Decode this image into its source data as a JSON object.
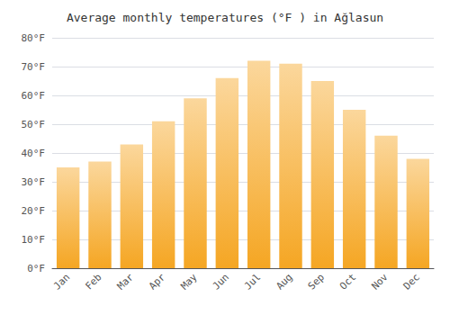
{
  "chart_data": {
    "type": "bar",
    "title": "Average monthly temperatures (°F ) in Ağlasun",
    "categories": [
      "Jan",
      "Feb",
      "Mar",
      "Apr",
      "May",
      "Jun",
      "Jul",
      "Aug",
      "Sep",
      "Oct",
      "Nov",
      "Dec"
    ],
    "values": [
      35,
      37,
      43,
      51,
      59,
      66,
      72,
      71,
      65,
      55,
      46,
      38
    ],
    "color": "#F5A623",
    "ylim": [
      0,
      80
    ],
    "yticks": [
      {
        "value": 0,
        "label": "0°F"
      },
      {
        "value": 10,
        "label": "10°F"
      },
      {
        "value": 20,
        "label": "20°F"
      },
      {
        "value": 30,
        "label": "30°F"
      },
      {
        "value": 40,
        "label": "40°F"
      },
      {
        "value": 50,
        "label": "50°F"
      },
      {
        "value": 60,
        "label": "60°F"
      },
      {
        "value": 70,
        "label": "70°F"
      },
      {
        "value": 80,
        "label": "80°F"
      }
    ],
    "grid": true
  }
}
